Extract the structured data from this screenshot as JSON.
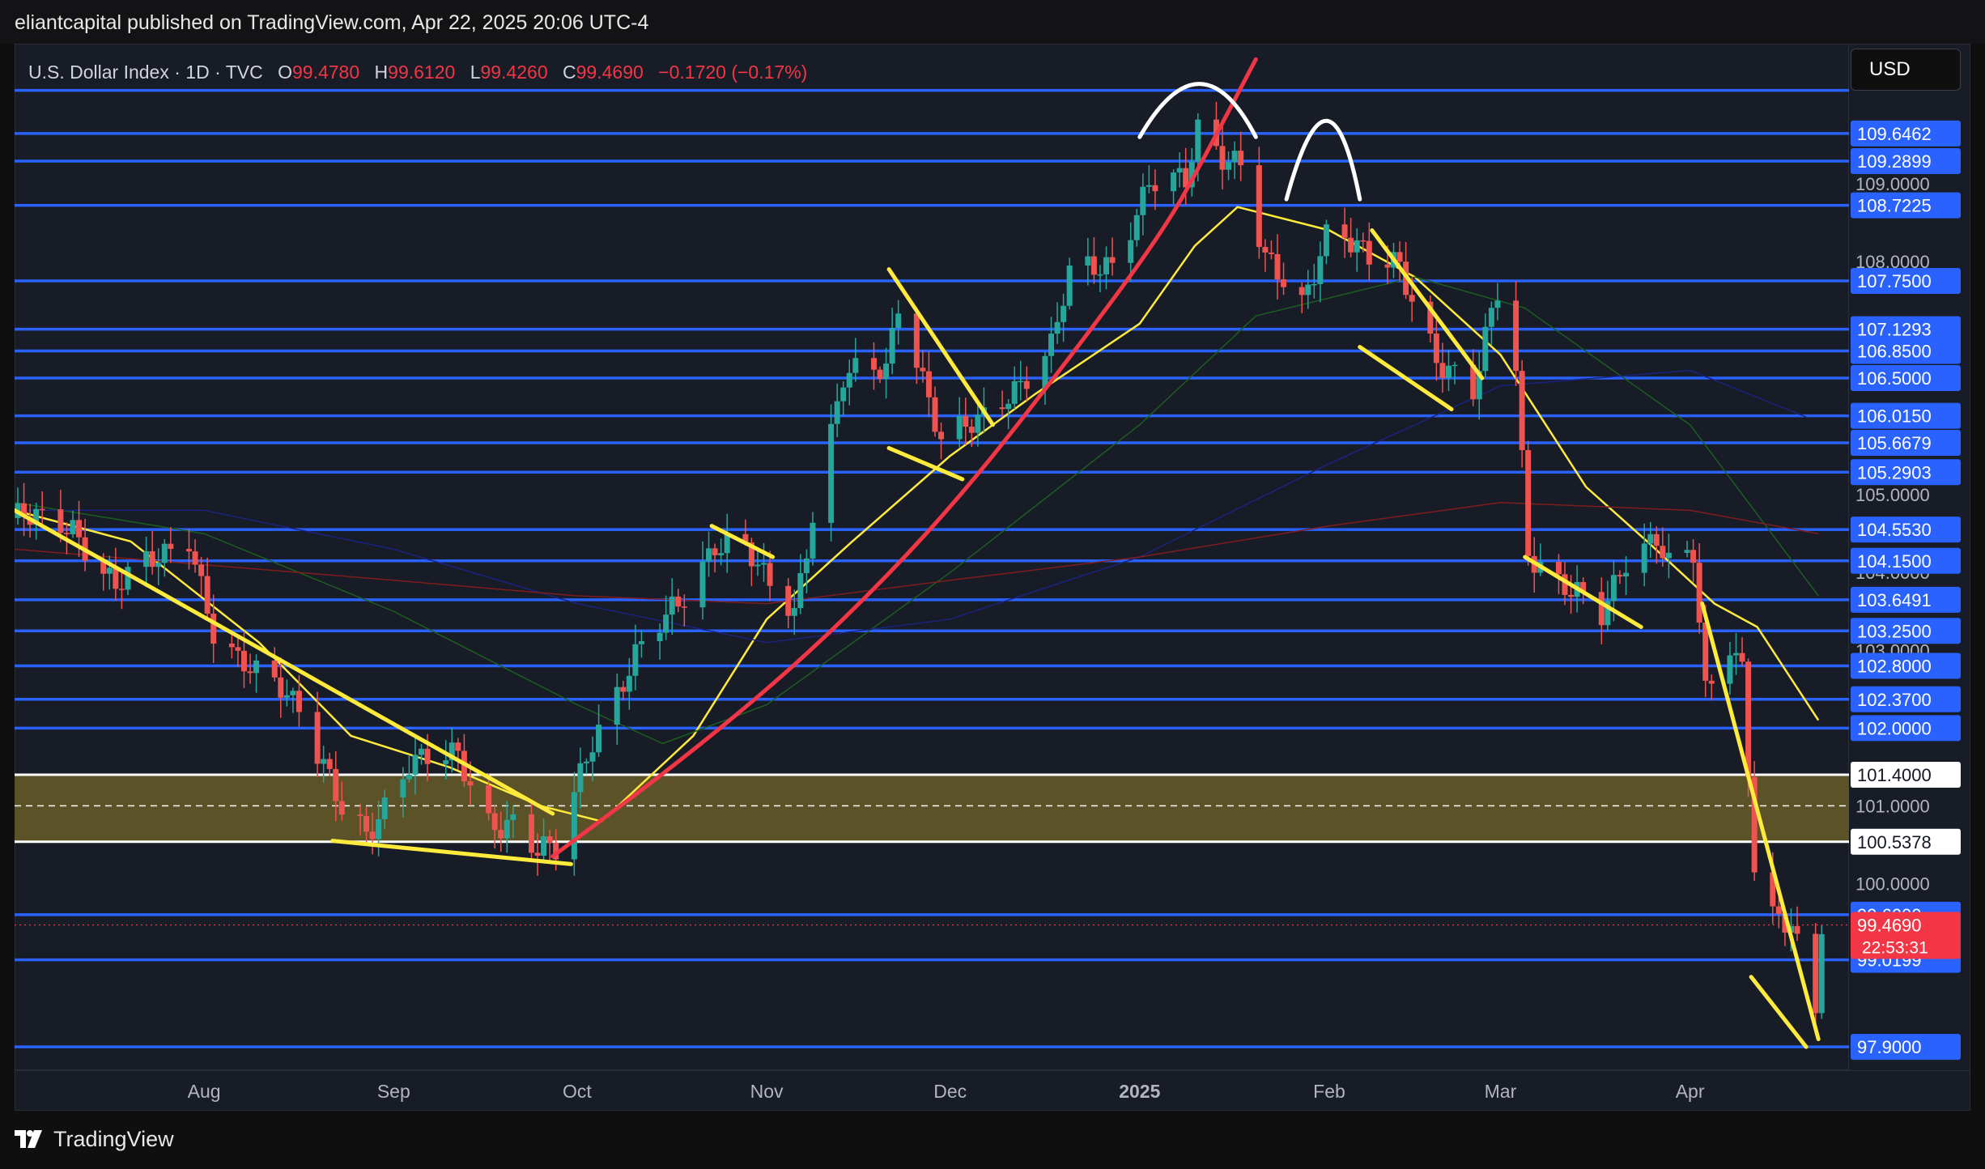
{
  "header": {
    "published_by": "eliantcapital published on TradingView.com, Apr 22, 2025 20:06 UTC-4"
  },
  "legend": {
    "symbol": "U.S. Dollar Index · 1D · TVC",
    "open_label": "O",
    "open": "99.4780",
    "high_label": "H",
    "high": "99.6120",
    "low_label": "L",
    "low": "99.4260",
    "close_label": "C",
    "close": "99.4690",
    "change": "−0.1720 (−0.17%)"
  },
  "currency": "USD",
  "footer": {
    "brand": "TradingView"
  },
  "colors": {
    "background": "#181c27",
    "up": "#26a69a",
    "down": "#ef5350",
    "hline": "#2962ff",
    "trend": "#ffeb3b",
    "curve": "#f23645",
    "zone": "#5b5227",
    "ma_blue": "#1a237e",
    "ma_red": "#7f1d1d",
    "ma_green": "#1b5e20"
  },
  "chart_data": {
    "type": "candlestick",
    "title": "U.S. Dollar Index · 1D · TVC",
    "ylim": [
      97.6,
      110.8
    ],
    "xlim": [
      "2024-07-01",
      "2025-04-27"
    ],
    "price_scale_ticks": [
      {
        "value": 109.0,
        "label": "109.0000"
      },
      {
        "value": 108.0,
        "label": "108.0000"
      },
      {
        "value": 105.0,
        "label": "105.0000"
      },
      {
        "value": 104.0,
        "label": "104.0000"
      },
      {
        "value": 103.0,
        "label": "103.0000"
      },
      {
        "value": 101.0,
        "label": "101.0000"
      },
      {
        "value": 100.0,
        "label": "100.0000"
      }
    ],
    "time_scale_ticks": [
      {
        "date": "2024-08-01",
        "label": "Aug",
        "bold": false
      },
      {
        "date": "2024-09-01",
        "label": "Sep",
        "bold": false
      },
      {
        "date": "2024-10-01",
        "label": "Oct",
        "bold": false
      },
      {
        "date": "2024-11-01",
        "label": "Nov",
        "bold": false
      },
      {
        "date": "2024-12-01",
        "label": "Dec",
        "bold": false
      },
      {
        "date": "2025-01-01",
        "label": "2025",
        "bold": true
      },
      {
        "date": "2025-02-01",
        "label": "Feb",
        "bold": false
      },
      {
        "date": "2025-03-01",
        "label": "Mar",
        "bold": false
      },
      {
        "date": "2025-04-01",
        "label": "Apr",
        "bold": false
      }
    ],
    "horizontal_levels": [
      {
        "value": 110.2,
        "label": ""
      },
      {
        "value": 109.6462,
        "label": "109.6462"
      },
      {
        "value": 109.2899,
        "label": "109.2899"
      },
      {
        "value": 108.7225,
        "label": "108.7225"
      },
      {
        "value": 107.75,
        "label": "107.7500"
      },
      {
        "value": 107.1293,
        "label": "107.1293"
      },
      {
        "value": 106.85,
        "label": "106.8500"
      },
      {
        "value": 106.5,
        "label": "106.5000"
      },
      {
        "value": 106.015,
        "label": "106.0150"
      },
      {
        "value": 105.6679,
        "label": "105.6679"
      },
      {
        "value": 105.2903,
        "label": "105.2903"
      },
      {
        "value": 104.553,
        "label": "104.5530"
      },
      {
        "value": 104.15,
        "label": "104.1500"
      },
      {
        "value": 103.6491,
        "label": "103.6491"
      },
      {
        "value": 103.25,
        "label": "103.2500"
      },
      {
        "value": 102.8,
        "label": "102.8000"
      },
      {
        "value": 102.37,
        "label": "102.3700"
      },
      {
        "value": 102.0,
        "label": "102.0000"
      },
      {
        "value": 99.6,
        "label": "99.6000"
      },
      {
        "value": 99.0199,
        "label": "99.0199"
      },
      {
        "value": 97.9,
        "label": "97.9000"
      }
    ],
    "zone": {
      "top": 101.4,
      "bottom": 100.5378,
      "mid": 101.0,
      "top_label": "101.4000",
      "bottom_label": "100.5378"
    },
    "last_price": {
      "value": 99.469,
      "label": "99.4690",
      "countdown": "22:53:31"
    },
    "anchors": [
      [
        "2024-07-01",
        104.7
      ],
      [
        "2024-07-10",
        104.6
      ],
      [
        "2024-07-17",
        103.8
      ],
      [
        "2024-07-24",
        104.2
      ],
      [
        "2024-07-29",
        104.5
      ],
      [
        "2024-08-02",
        103.2
      ],
      [
        "2024-08-06",
        102.8
      ],
      [
        "2024-08-13",
        102.6
      ],
      [
        "2024-08-16",
        102.3
      ],
      [
        "2024-08-23",
        100.9
      ],
      [
        "2024-08-27",
        100.6
      ],
      [
        "2024-09-03",
        101.6
      ],
      [
        "2024-09-11",
        101.6
      ],
      [
        "2024-09-16",
        100.8
      ],
      [
        "2024-09-20",
        100.8
      ],
      [
        "2024-09-24",
        100.4
      ],
      [
        "2024-09-27",
        100.4
      ],
      [
        "2024-10-03",
        101.9
      ],
      [
        "2024-10-10",
        102.9
      ],
      [
        "2024-10-17",
        103.6
      ],
      [
        "2024-10-23",
        104.4
      ],
      [
        "2024-10-28",
        104.3
      ],
      [
        "2024-10-31",
        103.9
      ],
      [
        "2024-11-05",
        103.5
      ],
      [
        "2024-11-08",
        104.8
      ],
      [
        "2024-11-13",
        106.5
      ],
      [
        "2024-11-20",
        106.6
      ],
      [
        "2024-11-22",
        107.5
      ],
      [
        "2024-11-25",
        106.8
      ],
      [
        "2024-11-29",
        105.7
      ],
      [
        "2024-12-05",
        105.9
      ],
      [
        "2024-12-11",
        106.4
      ],
      [
        "2024-12-17",
        106.9
      ],
      [
        "2024-12-20",
        107.8
      ],
      [
        "2024-12-27",
        108.0
      ],
      [
        "2025-01-02",
        109.0
      ],
      [
        "2025-01-08",
        109.0
      ],
      [
        "2025-01-10",
        109.7
      ],
      [
        "2025-01-14",
        109.4
      ],
      [
        "2025-01-17",
        109.3
      ],
      [
        "2025-01-21",
        108.0
      ],
      [
        "2025-01-27",
        107.4
      ],
      [
        "2025-01-31",
        108.4
      ],
      [
        "2025-02-03",
        108.4
      ],
      [
        "2025-02-07",
        108.0
      ],
      [
        "2025-02-12",
        107.9
      ],
      [
        "2025-02-18",
        106.8
      ],
      [
        "2025-02-24",
        106.3
      ],
      [
        "2025-02-28",
        107.6
      ],
      [
        "2025-03-03",
        106.6
      ],
      [
        "2025-03-05",
        104.3
      ],
      [
        "2025-03-10",
        103.9
      ],
      [
        "2025-03-17",
        103.4
      ],
      [
        "2025-03-21",
        104.2
      ],
      [
        "2025-03-26",
        104.5
      ],
      [
        "2025-03-28",
        104.1
      ],
      [
        "2025-04-01",
        104.2
      ],
      [
        "2025-04-03",
        102.4
      ],
      [
        "2025-04-07",
        103.1
      ],
      [
        "2025-04-09",
        102.8
      ],
      [
        "2025-04-11",
        100.3
      ],
      [
        "2025-04-14",
        99.6
      ],
      [
        "2025-04-17",
        99.4
      ],
      [
        "2025-04-21",
        98.3
      ],
      [
        "2025-04-22",
        99.47
      ]
    ],
    "moving_averages": [
      {
        "name": "",
        "color": "#ffeb3b",
        "width": 2.5,
        "points": [
          [
            "2024-07-01",
            104.8
          ],
          [
            "2024-07-20",
            104.4
          ],
          [
            "2024-08-10",
            103.1
          ],
          [
            "2024-08-25",
            101.9
          ],
          [
            "2024-09-10",
            101.5
          ],
          [
            "2024-09-25",
            101.0
          ],
          [
            "2024-10-05",
            100.8
          ],
          [
            "2024-10-20",
            101.9
          ],
          [
            "2024-11-01",
            103.4
          ],
          [
            "2024-11-15",
            104.4
          ],
          [
            "2024-12-01",
            105.5
          ],
          [
            "2024-12-15",
            106.3
          ],
          [
            "2025-01-01",
            107.2
          ],
          [
            "2025-01-10",
            108.2
          ],
          [
            "2025-01-17",
            108.7
          ],
          [
            "2025-02-01",
            108.4
          ],
          [
            "2025-02-15",
            107.8
          ],
          [
            "2025-03-01",
            106.8
          ],
          [
            "2025-03-15",
            105.1
          ],
          [
            "2025-03-25",
            104.4
          ],
          [
            "2025-04-05",
            103.6
          ],
          [
            "2025-04-12",
            103.3
          ],
          [
            "2025-04-22",
            102.1
          ]
        ]
      },
      {
        "name": "",
        "color": "#1b5e20",
        "width": 1.5,
        "points": [
          [
            "2024-07-01",
            104.9
          ],
          [
            "2024-08-01",
            104.5
          ],
          [
            "2024-09-01",
            103.5
          ],
          [
            "2024-10-01",
            102.3
          ],
          [
            "2024-10-15",
            101.8
          ],
          [
            "2024-11-01",
            102.3
          ],
          [
            "2024-12-01",
            104.0
          ],
          [
            "2025-01-01",
            105.9
          ],
          [
            "2025-01-20",
            107.3
          ],
          [
            "2025-02-15",
            107.8
          ],
          [
            "2025-03-05",
            107.4
          ],
          [
            "2025-04-01",
            105.9
          ],
          [
            "2025-04-22",
            103.7
          ]
        ]
      },
      {
        "name": "",
        "color": "#1a237e",
        "width": 1.5,
        "points": [
          [
            "2024-07-01",
            104.8
          ],
          [
            "2024-08-01",
            104.8
          ],
          [
            "2024-09-01",
            104.3
          ],
          [
            "2024-10-01",
            103.6
          ],
          [
            "2024-11-01",
            103.1
          ],
          [
            "2024-12-01",
            103.4
          ],
          [
            "2025-01-01",
            104.2
          ],
          [
            "2025-02-01",
            105.4
          ],
          [
            "2025-03-01",
            106.4
          ],
          [
            "2025-04-01",
            106.6
          ],
          [
            "2025-04-20",
            106.0
          ]
        ]
      },
      {
        "name": "",
        "color": "#7f1d1d",
        "width": 1.5,
        "points": [
          [
            "2024-07-01",
            104.3
          ],
          [
            "2024-08-01",
            104.1
          ],
          [
            "2024-09-01",
            103.9
          ],
          [
            "2024-10-01",
            103.7
          ],
          [
            "2024-11-01",
            103.6
          ],
          [
            "2024-12-01",
            103.9
          ],
          [
            "2025-01-01",
            104.2
          ],
          [
            "2025-02-01",
            104.6
          ],
          [
            "2025-03-01",
            104.9
          ],
          [
            "2025-04-01",
            104.8
          ],
          [
            "2025-04-22",
            104.5
          ]
        ]
      }
    ],
    "trendlines": [
      [
        [
          "2024-07-01",
          104.8
        ],
        [
          "2024-09-27",
          100.9
        ]
      ],
      [
        [
          "2024-08-22",
          100.55
        ],
        [
          "2024-09-30",
          100.25
        ]
      ],
      [
        [
          "2024-10-23",
          104.6
        ],
        [
          "2024-11-02",
          104.2
        ]
      ],
      [
        [
          "2024-11-21",
          107.9
        ],
        [
          "2024-12-08",
          105.9
        ]
      ],
      [
        [
          "2024-11-21",
          105.6
        ],
        [
          "2024-12-03",
          105.2
        ]
      ],
      [
        [
          "2025-02-08",
          108.4
        ],
        [
          "2025-02-26",
          106.5
        ]
      ],
      [
        [
          "2025-02-06",
          106.9
        ],
        [
          "2025-02-21",
          106.1
        ]
      ],
      [
        [
          "2025-03-05",
          104.2
        ],
        [
          "2025-03-24",
          103.3
        ]
      ],
      [
        [
          "2025-04-03",
          103.6
        ],
        [
          "2025-04-22",
          98.0
        ]
      ],
      [
        [
          "2025-04-11",
          98.8
        ],
        [
          "2025-04-20",
          97.9
        ]
      ]
    ],
    "parabolic_curve": {
      "color": "#f23645",
      "points": [
        [
          "2024-09-27",
          100.35
        ],
        [
          "2024-10-20",
          101.7
        ],
        [
          "2024-11-10",
          103.1
        ],
        [
          "2024-12-01",
          104.8
        ],
        [
          "2024-12-20",
          106.7
        ],
        [
          "2025-01-05",
          108.4
        ],
        [
          "2025-01-12",
          109.4
        ],
        [
          "2025-01-20",
          110.6
        ]
      ]
    },
    "top_arcs": [
      [
        [
          "2025-01-01",
          109.6
        ],
        [
          "2025-01-11",
          110.55
        ],
        [
          "2025-01-20",
          109.6
        ]
      ],
      [
        [
          "2025-01-25",
          108.8
        ],
        [
          "2025-02-01",
          110.4
        ],
        [
          "2025-02-06",
          108.8
        ]
      ]
    ]
  }
}
